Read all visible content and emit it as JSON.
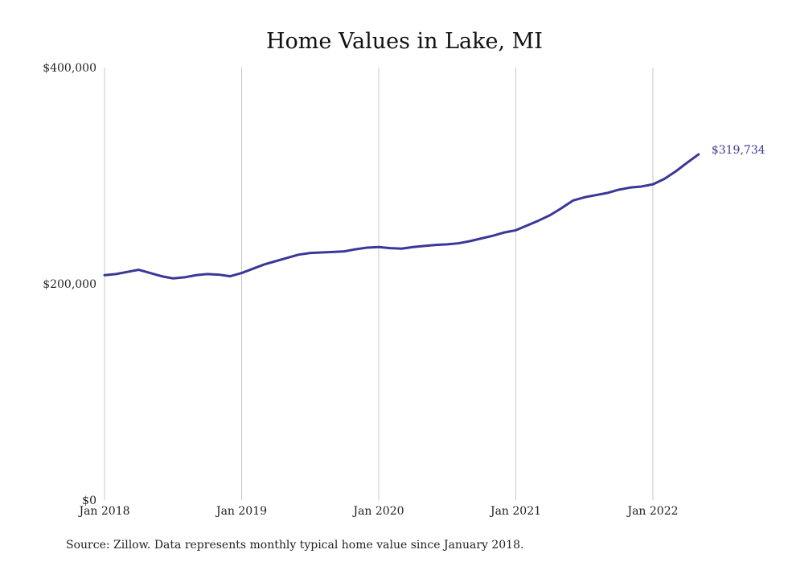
{
  "chart_data": {
    "type": "line",
    "title": "Home Values in Lake, MI",
    "source": "Source: Zillow. Data represents monthly typical home value since January 2018.",
    "xlabel": "",
    "ylabel": "",
    "x_ticks": [
      "Jan 2018",
      "Jan 2019",
      "Jan 2020",
      "Jan 2021",
      "Jan 2022"
    ],
    "y_ticks": [
      "$0",
      "$200,000",
      "$400,000"
    ],
    "ylim": [
      0,
      400000
    ],
    "xlim": [
      "2018-01",
      "2022-05"
    ],
    "grid": "vertical",
    "line_color": "#3a3799",
    "end_label": "$319,734",
    "series": [
      {
        "x": [
          "2018-01",
          "2018-02",
          "2018-03",
          "2018-04",
          "2018-05",
          "2018-06",
          "2018-07",
          "2018-08",
          "2018-09",
          "2018-10",
          "2018-11",
          "2018-12",
          "2019-01",
          "2019-02",
          "2019-03",
          "2019-04",
          "2019-05",
          "2019-06",
          "2019-07",
          "2019-08",
          "2019-09",
          "2019-10",
          "2019-11",
          "2019-12",
          "2020-01",
          "2020-02",
          "2020-03",
          "2020-04",
          "2020-05",
          "2020-06",
          "2020-07",
          "2020-08",
          "2020-09",
          "2020-10",
          "2020-11",
          "2020-12",
          "2021-01",
          "2021-02",
          "2021-03",
          "2021-04",
          "2021-05",
          "2021-06",
          "2021-07",
          "2021-08",
          "2021-09",
          "2021-10",
          "2021-11",
          "2021-12",
          "2022-01",
          "2022-02",
          "2022-03",
          "2022-04",
          "2022-05"
        ],
        "values": [
          208000,
          209000,
          211000,
          213000,
          210000,
          207000,
          205000,
          206000,
          208000,
          209000,
          208500,
          207000,
          210000,
          214000,
          218000,
          221000,
          224000,
          227000,
          228500,
          229000,
          229500,
          230000,
          232000,
          233500,
          234000,
          233000,
          232500,
          234000,
          235000,
          236000,
          236500,
          237500,
          239500,
          242000,
          244500,
          247500,
          249500,
          254000,
          258500,
          263500,
          270000,
          277000,
          280000,
          282000,
          284000,
          287000,
          289000,
          290000,
          292000,
          297000,
          304000,
          312000,
          319734
        ]
      }
    ]
  }
}
